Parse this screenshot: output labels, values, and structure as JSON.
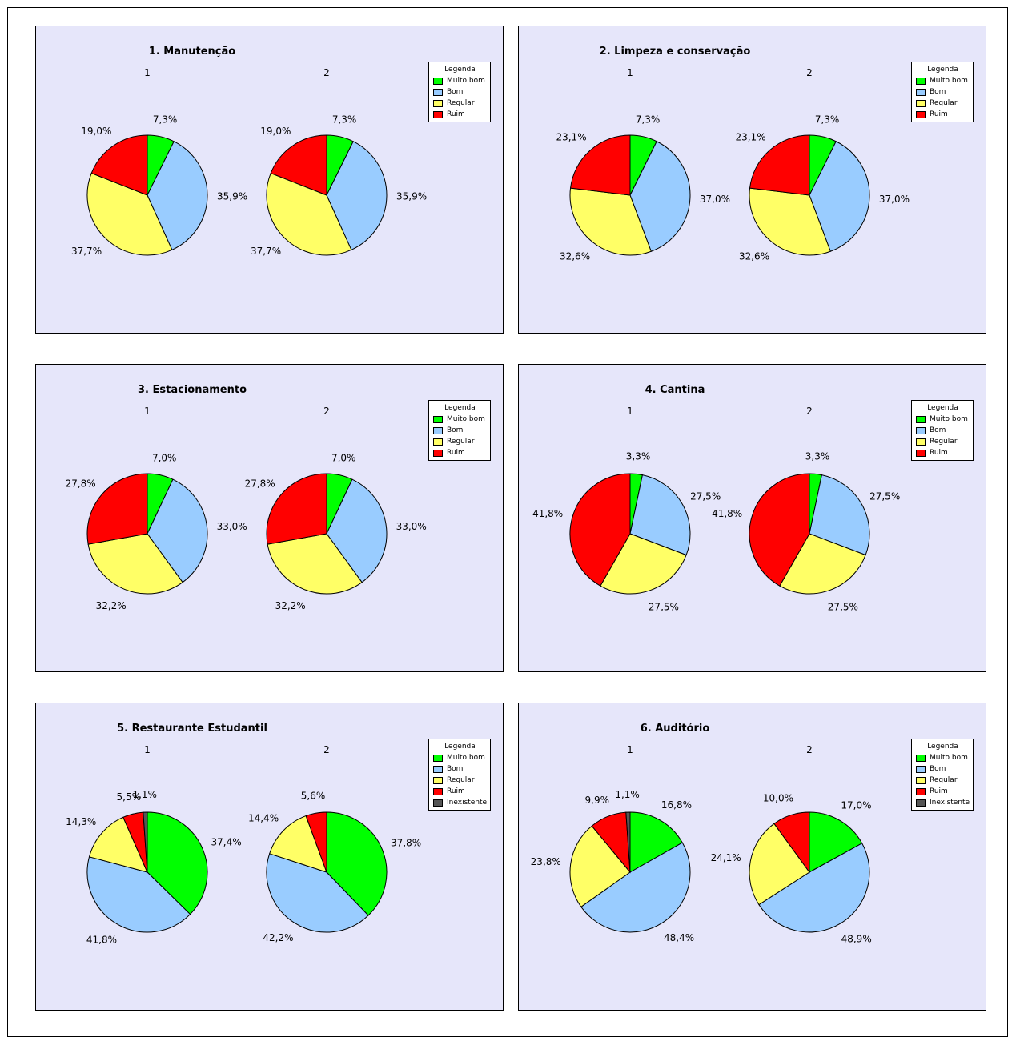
{
  "chart_data": [
    {
      "type": "pie",
      "title": "1. Manutenção",
      "legend_title": "Legenda",
      "categories": [
        "Muito bom",
        "Bom",
        "Regular",
        "Ruim"
      ],
      "series": [
        {
          "name": "1",
          "values": [
            7.3,
            35.9,
            37.7,
            19.0
          ],
          "labels": [
            "7,3%",
            "35,9%",
            "37,7%",
            "19,0%"
          ]
        },
        {
          "name": "2",
          "values": [
            7.3,
            35.9,
            37.7,
            19.0
          ],
          "labels": [
            "7,3%",
            "35,9%",
            "37,7%",
            "19,0%"
          ]
        }
      ]
    },
    {
      "type": "pie",
      "title": "2. Limpeza e conservação",
      "legend_title": "Legenda",
      "categories": [
        "Muito bom",
        "Bom",
        "Regular",
        "Ruim"
      ],
      "series": [
        {
          "name": "1",
          "values": [
            7.3,
            37.0,
            32.6,
            23.1
          ],
          "labels": [
            "7,3%",
            "37,0%",
            "32,6%",
            "23,1%"
          ]
        },
        {
          "name": "2",
          "values": [
            7.3,
            37.0,
            32.6,
            23.1
          ],
          "labels": [
            "7,3%",
            "37,0%",
            "32,6%",
            "23,1%"
          ]
        }
      ]
    },
    {
      "type": "pie",
      "title": "3. Estacionamento",
      "legend_title": "Legenda",
      "categories": [
        "Muito bom",
        "Bom",
        "Regular",
        "Ruim"
      ],
      "series": [
        {
          "name": "1",
          "values": [
            7.0,
            33.0,
            32.2,
            27.8
          ],
          "labels": [
            "7,0%",
            "33,0%",
            "32,2%",
            "27,8%"
          ]
        },
        {
          "name": "2",
          "values": [
            7.0,
            33.0,
            32.2,
            27.8
          ],
          "labels": [
            "7,0%",
            "33,0%",
            "32,2%",
            "27,8%"
          ]
        }
      ]
    },
    {
      "type": "pie",
      "title": "4. Cantina",
      "legend_title": "Legenda",
      "categories": [
        "Muito bom",
        "Bom",
        "Regular",
        "Ruim"
      ],
      "series": [
        {
          "name": "1",
          "values": [
            3.3,
            27.5,
            27.5,
            41.8
          ],
          "labels": [
            "3,3%",
            "27,5%",
            "27,5%",
            "41,8%"
          ]
        },
        {
          "name": "2",
          "values": [
            3.3,
            27.5,
            27.5,
            41.8
          ],
          "labels": [
            "3,3%",
            "27,5%",
            "27,5%",
            "41,8%"
          ]
        }
      ]
    },
    {
      "type": "pie",
      "title": "5. Restaurante Estudantil",
      "legend_title": "Legenda",
      "categories": [
        "Muito bom",
        "Bom",
        "Regular",
        "Ruim",
        "Inexistente"
      ],
      "series": [
        {
          "name": "1",
          "values": [
            37.4,
            41.8,
            14.3,
            5.5,
            1.1
          ],
          "labels": [
            "37,4%",
            "41,8%",
            "14,3%",
            "5,5%",
            "1,1%"
          ]
        },
        {
          "name": "2",
          "values": [
            37.8,
            42.2,
            14.4,
            5.6,
            0
          ],
          "labels": [
            "37,8%",
            "42,2%",
            "14,4%",
            "5,6%",
            ""
          ]
        }
      ]
    },
    {
      "type": "pie",
      "title": "6. Auditório",
      "legend_title": "Legenda",
      "categories": [
        "Muito bom",
        "Bom",
        "Regular",
        "Ruim",
        "Inexistente"
      ],
      "series": [
        {
          "name": "1",
          "values": [
            16.8,
            48.4,
            23.8,
            9.9,
            1.1
          ],
          "labels": [
            "16,8%",
            "48,4%",
            "23,8%",
            "9,9%",
            "1,1%"
          ]
        },
        {
          "name": "2",
          "values": [
            17.0,
            48.9,
            24.1,
            10.0,
            0
          ],
          "labels": [
            "17,0%",
            "48,9%",
            "24,1%",
            "10,0%",
            ""
          ]
        }
      ]
    }
  ],
  "colors": {
    "Muito bom": "#00ff00",
    "Bom": "#99ccff",
    "Regular": "#ffff66",
    "Ruim": "#ff0000",
    "Inexistente": "#555555"
  },
  "panel_background": "#e6e6fa"
}
